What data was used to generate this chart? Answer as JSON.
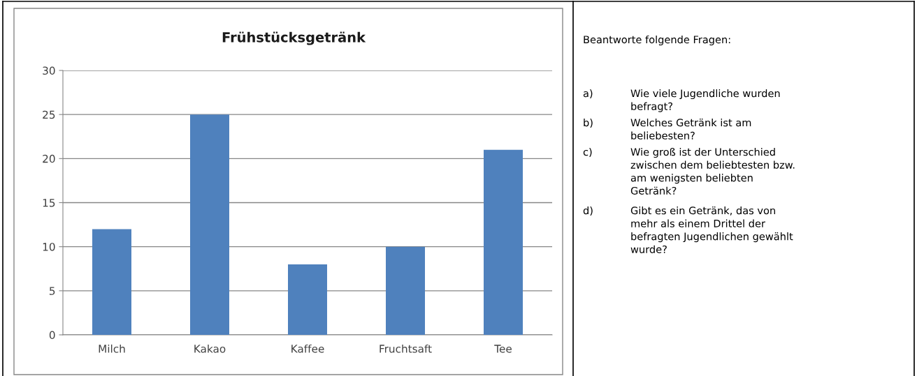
{
  "chart_data": [
    {
      "type": "bar",
      "title": "Frühstücksgetränk",
      "categories": [
        "Milch",
        "Kakao",
        "Kaffee",
        "Fruchtsaft",
        "Tee"
      ],
      "values": [
        12,
        25,
        8,
        10,
        21
      ],
      "color": "#4f81bd",
      "ylim": [
        0,
        30
      ],
      "yticks": [
        0,
        5,
        10,
        15,
        20,
        25,
        30
      ],
      "grid": "y"
    },
    {
      "type": "other",
      "title": "Beantworte folgende Fragen:",
      "annotations": [
        "a) Wie viele Jugendliche wurden\nbefragt?",
        "b) Welches Getränk ist am\nbeliebesten?",
        "c) Wie groß ist der Unterschied\nzwischen dem beliebtesten bzw.\nam wenigsten beliebten\nGetränk?",
        "d) Gibt es ein Getränk, das von\nmehr als einem Drittel der\nbefragten Jugendlichen gewählt\nwurde?"
      ]
    }
  ]
}
